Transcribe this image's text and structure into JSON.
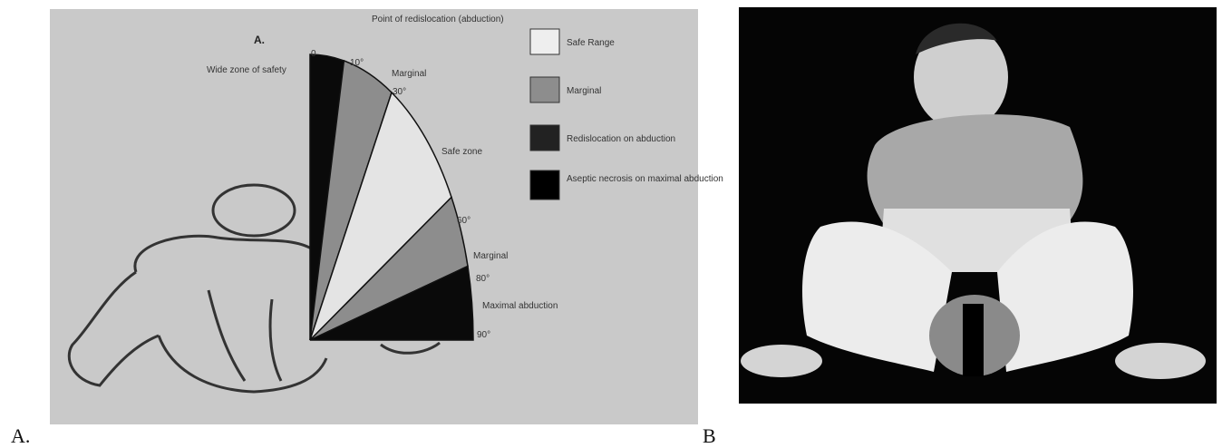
{
  "panel_a": {
    "heading": "A.",
    "zone_note": "Wide zone of safety",
    "redislocation_note": "Point of redislocation (abduction)",
    "angle_labels": [
      "0",
      "10°",
      "30°",
      "60°",
      "80°",
      "90°"
    ],
    "callouts": [
      "Marginal",
      "Safe zone",
      "Marginal",
      "Maximal abduction"
    ],
    "legend": [
      "Safe Range",
      "Marginal",
      "Redislocation on abduction",
      "Aseptic necrosis on maximal abduction"
    ],
    "caption": "A."
  },
  "panel_b": {
    "caption": "B"
  }
}
